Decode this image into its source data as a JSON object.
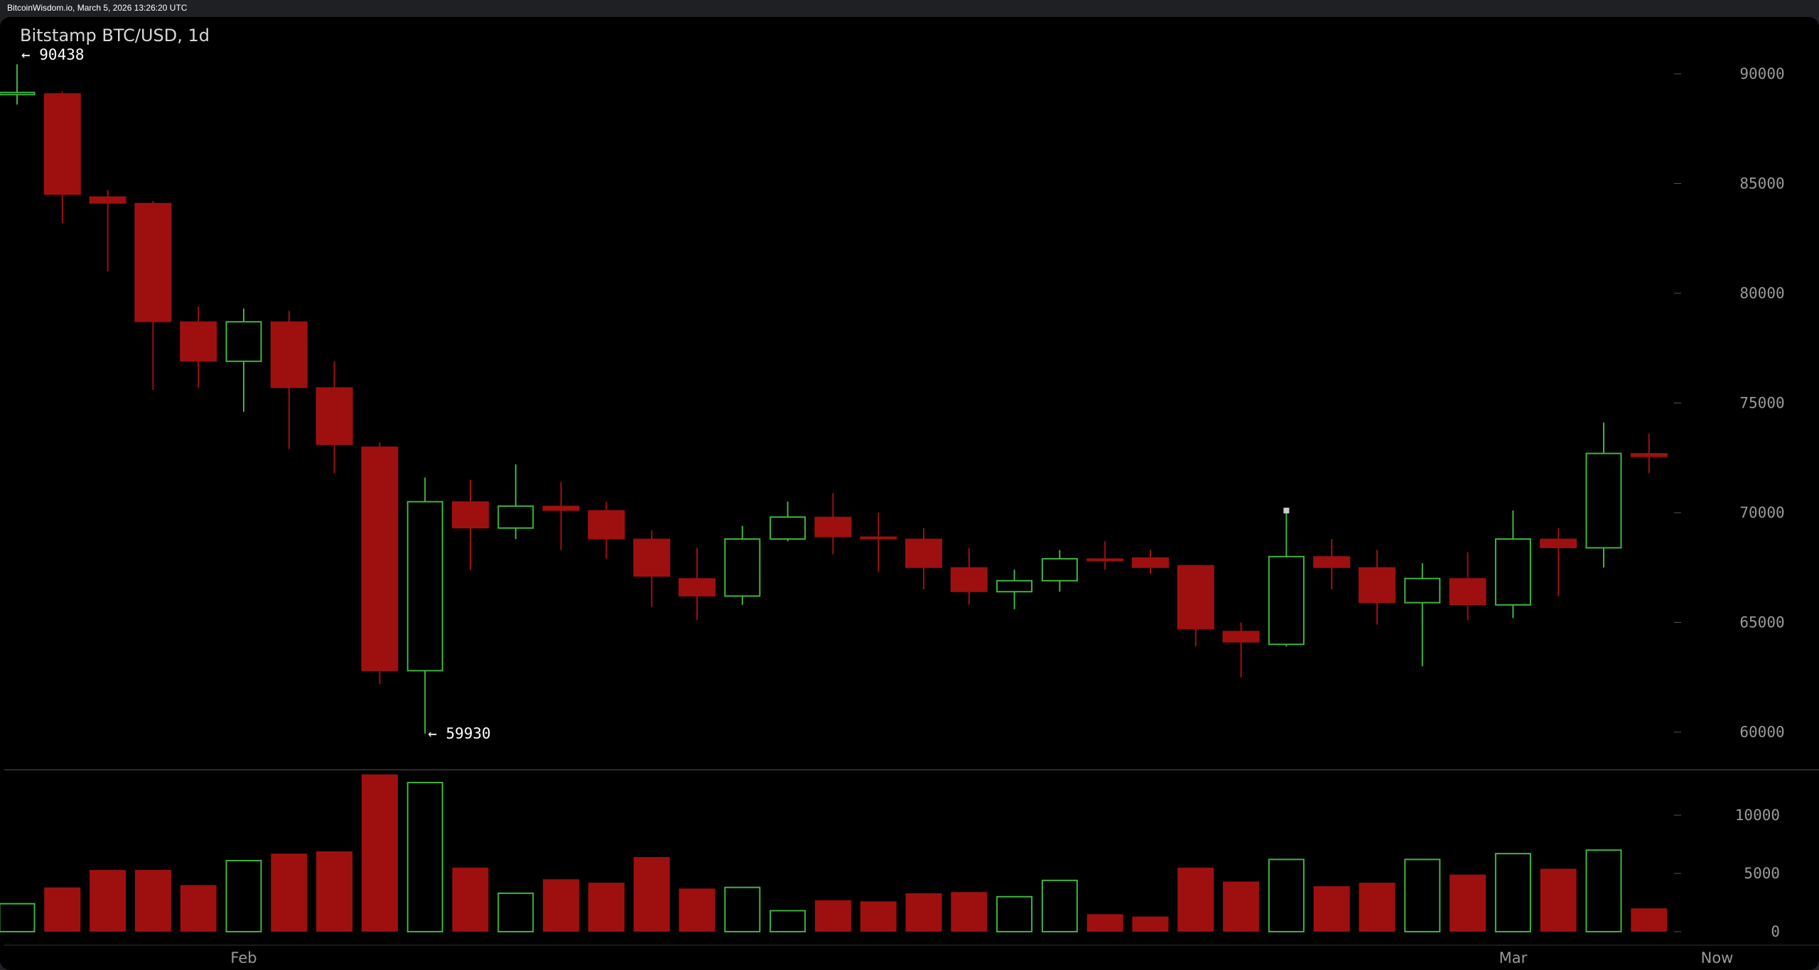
{
  "window": {
    "header_text": "BitcoinWisdom.io, March 5, 2026 13:26:20 UTC"
  },
  "chart": {
    "title": "Bitstamp BTC/USD, 1d",
    "high_label": "← 90438",
    "low_label": "← 59930",
    "colors": {
      "background": "#000000",
      "up": "#3fb53f",
      "down": "#9e1010",
      "axis_text": "#9a9a9a",
      "separator": "#555555"
    }
  },
  "chart_data": {
    "type": "candlestick",
    "title": "Bitstamp BTC/USD, 1d",
    "price_axis": {
      "ticks": [
        60000,
        65000,
        70000,
        75000,
        80000,
        85000,
        90000
      ],
      "range": [
        57400,
        91900
      ]
    },
    "volume_axis": {
      "ticks": [
        0,
        5000,
        10000
      ],
      "range": [
        0,
        13000
      ]
    },
    "x_labels": [
      {
        "label": "Feb",
        "index": 5
      },
      {
        "label": "Mar",
        "index": 33
      },
      {
        "label": "Now",
        "index": 37.5
      }
    ],
    "candles": [
      {
        "o": 89100,
        "h": 90438,
        "l": 88600,
        "c": 89150,
        "v": 2400
      },
      {
        "o": 89100,
        "h": 89200,
        "l": 83200,
        "c": 84500,
        "v": 3800
      },
      {
        "o": 84400,
        "h": 84700,
        "l": 81000,
        "c": 84100,
        "v": 5300
      },
      {
        "o": 84100,
        "h": 84200,
        "l": 75600,
        "c": 78700,
        "v": 5300
      },
      {
        "o": 78700,
        "h": 79400,
        "l": 75700,
        "c": 76900,
        "v": 4000
      },
      {
        "o": 76900,
        "h": 79300,
        "l": 74600,
        "c": 78700,
        "v": 6100
      },
      {
        "o": 78700,
        "h": 79200,
        "l": 72900,
        "c": 75700,
        "v": 6700
      },
      {
        "o": 75700,
        "h": 76900,
        "l": 71800,
        "c": 73100,
        "v": 6900
      },
      {
        "o": 73000,
        "h": 73200,
        "l": 62200,
        "c": 62800,
        "v": 13500
      },
      {
        "o": 62800,
        "h": 71600,
        "l": 59930,
        "c": 70500,
        "v": 12800
      },
      {
        "o": 70500,
        "h": 71500,
        "l": 67400,
        "c": 69300,
        "v": 5500
      },
      {
        "o": 69300,
        "h": 72200,
        "l": 68800,
        "c": 70300,
        "v": 3300
      },
      {
        "o": 70300,
        "h": 71400,
        "l": 68300,
        "c": 70100,
        "v": 4500
      },
      {
        "o": 70100,
        "h": 70500,
        "l": 67900,
        "c": 68800,
        "v": 4200
      },
      {
        "o": 68800,
        "h": 69200,
        "l": 65700,
        "c": 67100,
        "v": 6400
      },
      {
        "o": 67000,
        "h": 68400,
        "l": 65100,
        "c": 66200,
        "v": 3700
      },
      {
        "o": 66200,
        "h": 69400,
        "l": 65800,
        "c": 68800,
        "v": 3800
      },
      {
        "o": 68800,
        "h": 70500,
        "l": 68700,
        "c": 69800,
        "v": 1800
      },
      {
        "o": 69800,
        "h": 70900,
        "l": 68100,
        "c": 68900,
        "v": 2700
      },
      {
        "o": 68900,
        "h": 70000,
        "l": 67300,
        "c": 68800,
        "v": 2600
      },
      {
        "o": 68800,
        "h": 69300,
        "l": 66500,
        "c": 67500,
        "v": 3300
      },
      {
        "o": 67500,
        "h": 68400,
        "l": 65800,
        "c": 66400,
        "v": 3400
      },
      {
        "o": 66400,
        "h": 67400,
        "l": 65600,
        "c": 66900,
        "v": 3000
      },
      {
        "o": 66900,
        "h": 68300,
        "l": 66400,
        "c": 67900,
        "v": 4400
      },
      {
        "o": 67900,
        "h": 68700,
        "l": 67400,
        "c": 67850,
        "v": 1500
      },
      {
        "o": 67950,
        "h": 68300,
        "l": 67200,
        "c": 67500,
        "v": 1300
      },
      {
        "o": 67600,
        "h": 67600,
        "l": 63900,
        "c": 64700,
        "v": 5500
      },
      {
        "o": 64600,
        "h": 65000,
        "l": 62500,
        "c": 64100,
        "v": 4300
      },
      {
        "o": 64000,
        "h": 70100,
        "l": 63900,
        "c": 68000,
        "v": 6200
      },
      {
        "o": 68000,
        "h": 68800,
        "l": 66500,
        "c": 67500,
        "v": 3900
      },
      {
        "o": 67500,
        "h": 68300,
        "l": 64900,
        "c": 65900,
        "v": 4200
      },
      {
        "o": 65900,
        "h": 67700,
        "l": 63000,
        "c": 67000,
        "v": 6200
      },
      {
        "o": 67000,
        "h": 68200,
        "l": 65100,
        "c": 65800,
        "v": 4900
      },
      {
        "o": 65800,
        "h": 70100,
        "l": 65200,
        "c": 68800,
        "v": 6700
      },
      {
        "o": 68800,
        "h": 69300,
        "l": 66200,
        "c": 68400,
        "v": 5400
      },
      {
        "o": 68400,
        "h": 74100,
        "l": 67500,
        "c": 72700,
        "v": 7000
      },
      {
        "o": 72700,
        "h": 73600,
        "l": 71800,
        "c": 72550,
        "v": 2000
      }
    ]
  }
}
